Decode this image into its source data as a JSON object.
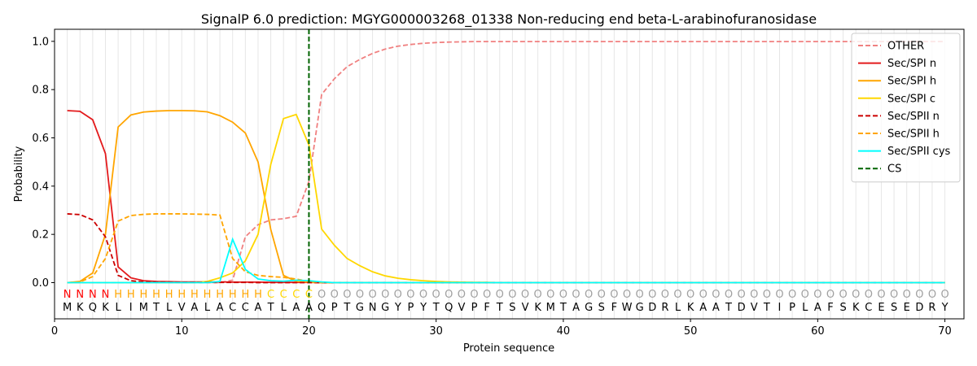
{
  "chart_data": {
    "type": "line",
    "title": "SignalP 6.0 prediction: MGYG000003268_01338 Non-reducing end beta-L-arabinofuranosidase",
    "xlabel": "Protein sequence",
    "ylabel": "Probability",
    "xlim": [
      0,
      71.5
    ],
    "ylim": [
      -0.15,
      1.05
    ],
    "xticks": [
      0,
      10,
      20,
      30,
      40,
      50,
      60,
      70
    ],
    "yticks": [
      0.0,
      0.2,
      0.4,
      0.6,
      0.8,
      1.0
    ],
    "ytick_labels": [
      "0.0",
      "0.2",
      "0.4",
      "0.6",
      "0.8",
      "1.0"
    ],
    "grid": "vertical lines at each residue",
    "legend_position": "top-right",
    "sequence": [
      "M",
      "K",
      "Q",
      "K",
      "L",
      "I",
      "M",
      "T",
      "L",
      "V",
      "A",
      "L",
      "A",
      "C",
      "C",
      "A",
      "T",
      "L",
      "A",
      "A",
      "Q",
      "P",
      "T",
      "G",
      "N",
      "G",
      "Y",
      "P",
      "Y",
      "T",
      "Q",
      "V",
      "P",
      "F",
      "T",
      "S",
      "V",
      "K",
      "M",
      "T",
      "A",
      "G",
      "S",
      "F",
      "W",
      "G",
      "D",
      "R",
      "L",
      "K",
      "A",
      "A",
      "T",
      "D",
      "V",
      "T",
      "I",
      "P",
      "L",
      "A",
      "F",
      "S",
      "K",
      "C",
      "E",
      "S",
      "E",
      "D",
      "R",
      "Y"
    ],
    "labels": [
      "N",
      "N",
      "N",
      "N",
      "H",
      "H",
      "H",
      "H",
      "H",
      "H",
      "H",
      "H",
      "H",
      "H",
      "H",
      "H",
      "C",
      "C",
      "C",
      "C",
      "O",
      "O",
      "O",
      "O",
      "O",
      "O",
      "O",
      "O",
      "O",
      "O",
      "O",
      "O",
      "O",
      "O",
      "O",
      "O",
      "O",
      "O",
      "O",
      "O",
      "O",
      "O",
      "O",
      "O",
      "O",
      "O",
      "O",
      "O",
      "O",
      "O",
      "O",
      "O",
      "O",
      "O",
      "O",
      "O",
      "O",
      "O",
      "O",
      "O",
      "O",
      "O",
      "O",
      "O",
      "O",
      "O",
      "O",
      "O",
      "O",
      "O"
    ],
    "label_colors": {
      "N": "#ff0000",
      "H": "#ffa500",
      "C": "#ffd700",
      "O": "#a0a0a0"
    },
    "cs_position": 20,
    "series": [
      {
        "name": "OTHER",
        "color": "#f08080",
        "dash": "dashed",
        "values": [
          0.0,
          0.0,
          0.0,
          0.0,
          0.0,
          0.0,
          0.0,
          0.0,
          0.0,
          0.0,
          0.0,
          0.0,
          0.0,
          0.01,
          0.19,
          0.24,
          0.26,
          0.265,
          0.275,
          0.42,
          0.78,
          0.845,
          0.895,
          0.925,
          0.95,
          0.968,
          0.98,
          0.987,
          0.992,
          0.995,
          0.997,
          0.998,
          0.999,
          0.999,
          0.999,
          0.999,
          0.999,
          0.999,
          0.999,
          0.999,
          0.999,
          0.999,
          0.999,
          0.999,
          0.999,
          0.999,
          0.999,
          0.999,
          0.999,
          0.999,
          0.999,
          0.999,
          0.999,
          0.999,
          0.999,
          0.999,
          0.999,
          0.999,
          0.999,
          0.999,
          0.999,
          0.999,
          0.999,
          0.999,
          0.999,
          0.999,
          0.999,
          0.999,
          0.999,
          0.999
        ]
      },
      {
        "name": "Sec/SPI n",
        "color": "#e31a1c",
        "dash": "solid",
        "values": [
          0.713,
          0.71,
          0.675,
          0.535,
          0.065,
          0.02,
          0.008,
          0.005,
          0.004,
          0.003,
          0.003,
          0.003,
          0.003,
          0.002,
          0.002,
          0.002,
          0.001,
          0.001,
          0.001,
          0.001,
          0.0,
          0.0,
          0.0,
          0.0,
          0.0,
          0.0,
          0.0,
          0.0,
          0.0,
          0.0,
          0.0,
          0.0,
          0.0,
          0.0,
          0.0,
          0.0,
          0.0,
          0.0,
          0.0,
          0.0,
          0.0,
          0.0,
          0.0,
          0.0,
          0.0,
          0.0,
          0.0,
          0.0,
          0.0,
          0.0,
          0.0,
          0.0,
          0.0,
          0.0,
          0.0,
          0.0,
          0.0,
          0.0,
          0.0,
          0.0,
          0.0,
          0.0,
          0.0,
          0.0,
          0.0,
          0.0,
          0.0,
          0.0,
          0.0,
          0.0
        ]
      },
      {
        "name": "Sec/SPI h",
        "color": "#ffa500",
        "dash": "solid",
        "values": [
          0.0,
          0.005,
          0.04,
          0.2,
          0.645,
          0.695,
          0.707,
          0.711,
          0.713,
          0.713,
          0.712,
          0.708,
          0.692,
          0.665,
          0.62,
          0.5,
          0.22,
          0.03,
          0.005,
          0.002,
          0.0,
          0.0,
          0.0,
          0.0,
          0.0,
          0.0,
          0.0,
          0.0,
          0.0,
          0.0,
          0.0,
          0.0,
          0.0,
          0.0,
          0.0,
          0.0,
          0.0,
          0.0,
          0.0,
          0.0,
          0.0,
          0.0,
          0.0,
          0.0,
          0.0,
          0.0,
          0.0,
          0.0,
          0.0,
          0.0,
          0.0,
          0.0,
          0.0,
          0.0,
          0.0,
          0.0,
          0.0,
          0.0,
          0.0,
          0.0,
          0.0,
          0.0,
          0.0,
          0.0,
          0.0,
          0.0,
          0.0,
          0.0,
          0.0,
          0.0
        ]
      },
      {
        "name": "Sec/SPI c",
        "color": "#ffd700",
        "dash": "solid",
        "values": [
          0.0,
          0.0,
          0.0,
          0.0,
          0.0,
          0.0,
          0.0,
          0.0,
          0.0,
          0.0,
          0.0,
          0.005,
          0.02,
          0.04,
          0.09,
          0.2,
          0.49,
          0.68,
          0.697,
          0.57,
          0.222,
          0.155,
          0.1,
          0.07,
          0.045,
          0.028,
          0.018,
          0.012,
          0.008,
          0.005,
          0.003,
          0.002,
          0.001,
          0.001,
          0.0,
          0.0,
          0.0,
          0.0,
          0.0,
          0.0,
          0.0,
          0.0,
          0.0,
          0.0,
          0.0,
          0.0,
          0.0,
          0.0,
          0.0,
          0.0,
          0.0,
          0.0,
          0.0,
          0.0,
          0.0,
          0.0,
          0.0,
          0.0,
          0.0,
          0.0,
          0.0,
          0.0,
          0.0,
          0.0,
          0.0,
          0.0,
          0.0,
          0.0,
          0.0,
          0.0
        ]
      },
      {
        "name": "Sec/SPII n",
        "color": "#cc0000",
        "dash": "dashed",
        "values": [
          0.285,
          0.282,
          0.26,
          0.19,
          0.03,
          0.008,
          0.003,
          0.002,
          0.001,
          0.001,
          0.001,
          0.001,
          0.001,
          0.001,
          0.001,
          0.0,
          0.0,
          0.0,
          0.0,
          0.0,
          0.0,
          0.0,
          0.0,
          0.0,
          0.0,
          0.0,
          0.0,
          0.0,
          0.0,
          0.0,
          0.0,
          0.0,
          0.0,
          0.0,
          0.0,
          0.0,
          0.0,
          0.0,
          0.0,
          0.0,
          0.0,
          0.0,
          0.0,
          0.0,
          0.0,
          0.0,
          0.0,
          0.0,
          0.0,
          0.0,
          0.0,
          0.0,
          0.0,
          0.0,
          0.0,
          0.0,
          0.0,
          0.0,
          0.0,
          0.0,
          0.0,
          0.0,
          0.0,
          0.0,
          0.0,
          0.0,
          0.0,
          0.0,
          0.0,
          0.0
        ]
      },
      {
        "name": "Sec/SPII h",
        "color": "#ffa500",
        "dash": "dashed",
        "values": [
          0.0,
          0.003,
          0.025,
          0.1,
          0.255,
          0.278,
          0.283,
          0.285,
          0.285,
          0.285,
          0.284,
          0.283,
          0.28,
          0.1,
          0.045,
          0.03,
          0.025,
          0.022,
          0.015,
          0.005,
          0.001,
          0.0,
          0.0,
          0.0,
          0.0,
          0.0,
          0.0,
          0.0,
          0.0,
          0.0,
          0.0,
          0.0,
          0.0,
          0.0,
          0.0,
          0.0,
          0.0,
          0.0,
          0.0,
          0.0,
          0.0,
          0.0,
          0.0,
          0.0,
          0.0,
          0.0,
          0.0,
          0.0,
          0.0,
          0.0,
          0.0,
          0.0,
          0.0,
          0.0,
          0.0,
          0.0,
          0.0,
          0.0,
          0.0,
          0.0,
          0.0,
          0.0,
          0.0,
          0.0,
          0.0,
          0.0,
          0.0,
          0.0,
          0.0,
          0.0
        ]
      },
      {
        "name": "Sec/SPII cys",
        "color": "#00ffff",
        "dash": "solid",
        "values": [
          0.0,
          0.0,
          0.0,
          0.0,
          0.0,
          0.0,
          0.0,
          0.0,
          0.0,
          0.0,
          0.0,
          0.0,
          0.005,
          0.18,
          0.055,
          0.015,
          0.008,
          0.006,
          0.01,
          0.008,
          0.003,
          0.0,
          0.0,
          0.0,
          0.0,
          0.0,
          0.0,
          0.0,
          0.0,
          0.0,
          0.0,
          0.0,
          0.0,
          0.0,
          0.0,
          0.0,
          0.0,
          0.0,
          0.0,
          0.0,
          0.0,
          0.0,
          0.0,
          0.0,
          0.0,
          0.0,
          0.0,
          0.0,
          0.0,
          0.0,
          0.0,
          0.0,
          0.0,
          0.0,
          0.0,
          0.0,
          0.0,
          0.0,
          0.0,
          0.0,
          0.0,
          0.0,
          0.0,
          0.0,
          0.0,
          0.0,
          0.0,
          0.0,
          0.0,
          0.0
        ]
      },
      {
        "name": "CS",
        "color": "#006400",
        "dash": "dashed",
        "vertical_at": 20
      }
    ]
  }
}
